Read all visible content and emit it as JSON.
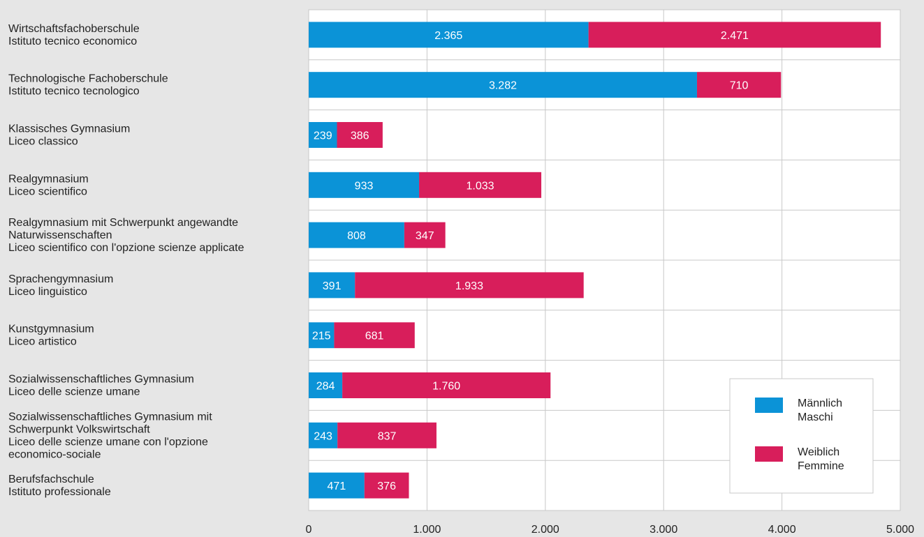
{
  "colors": {
    "male": "#0b93d7",
    "female": "#d81e5b",
    "plot_bg": "#ffffff",
    "grid": "#c8c8c8",
    "page_bg": "#e6e6e6"
  },
  "chart_data": {
    "type": "bar",
    "orientation": "horizontal",
    "stacked": true,
    "title": "",
    "xlabel": "",
    "ylabel": "",
    "xlim": [
      0,
      5000
    ],
    "grid": true,
    "legend_position": "bottom-right",
    "x_ticks": [
      {
        "value": 0,
        "label": "0"
      },
      {
        "value": 1000,
        "label": "1.000"
      },
      {
        "value": 2000,
        "label": "2.000"
      },
      {
        "value": 3000,
        "label": "3.000"
      },
      {
        "value": 4000,
        "label": "4.000"
      },
      {
        "value": 5000,
        "label": "5.000"
      }
    ],
    "categories": [
      [
        "Wirtschaftsfachoberschule",
        "Istituto tecnico economico"
      ],
      [
        "Technologische Fachoberschule",
        "Istituto tecnico tecnologico"
      ],
      [
        "Klassisches Gymnasium",
        "Liceo classico"
      ],
      [
        "Realgymnasium",
        "Liceo scientifico"
      ],
      [
        "Realgymnasium mit Schwerpunkt angewandte",
        "Naturwissenschaften",
        "Liceo scientifico con l'opzione scienze applicate"
      ],
      [
        "Sprachengymnasium",
        "Liceo linguistico"
      ],
      [
        "Kunstgymnasium",
        "Liceo artistico"
      ],
      [
        "Sozialwissenschaftliches Gymnasium",
        "Liceo delle scienze umane"
      ],
      [
        "Sozialwissenschaftliches Gymnasium mit",
        "Schwerpunkt Volkswirtschaft",
        "Liceo delle scienze umane con l'opzione",
        "economico-sociale"
      ],
      [
        "Berufsfachschule",
        "Istituto professionale"
      ]
    ],
    "series": [
      {
        "name": "Männlich Maschi",
        "legend_lines": [
          "Männlich",
          "Maschi"
        ],
        "color": "#0b93d7",
        "values": [
          2365,
          3282,
          239,
          933,
          808,
          391,
          215,
          284,
          243,
          471
        ],
        "labels": [
          "2.365",
          "3.282",
          "239",
          "933",
          "808",
          "391",
          "215",
          "284",
          "243",
          "471"
        ]
      },
      {
        "name": "Weiblich Femmine",
        "legend_lines": [
          "Weiblich",
          "Femmine"
        ],
        "color": "#d81e5b",
        "values": [
          2471,
          710,
          386,
          1033,
          347,
          1933,
          681,
          1760,
          837,
          376
        ],
        "labels": [
          "2.471",
          "710",
          "386",
          "1.033",
          "347",
          "1.933",
          "681",
          "1.760",
          "837",
          "376"
        ]
      }
    ]
  }
}
